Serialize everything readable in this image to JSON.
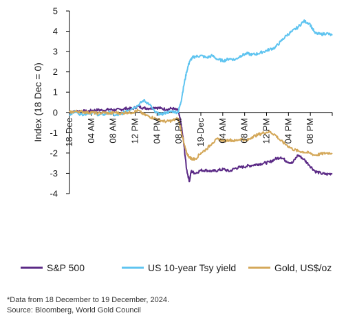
{
  "colors": {
    "sp500": "#5b2a86",
    "tsy": "#5fc4f0",
    "gold": "#d4a85a",
    "axis": "#000000"
  },
  "chart_data": {
    "type": "line",
    "ylabel": "Index (18 Dec = 0)",
    "ylim": [
      -4,
      5
    ],
    "y_ticks": [
      "5",
      "4",
      "3",
      "2",
      "1",
      "0",
      "-1",
      "-2",
      "-3",
      "-4"
    ],
    "x_tick_labels": [
      "18-Dec",
      "04 AM",
      "08 AM",
      "12 PM",
      "04 PM",
      "08 PM",
      "19-Dec",
      "04 AM",
      "08 AM",
      "12 PM",
      "04 PM",
      "08 PM"
    ],
    "x_range_hours": [
      0,
      46
    ],
    "grid": false,
    "legend_position": "bottom",
    "series": [
      {
        "name": "S&P 500",
        "color_key": "sp500",
        "points": [
          [
            0,
            0
          ],
          [
            1,
            0.05
          ],
          [
            2,
            0.08
          ],
          [
            3,
            0.05
          ],
          [
            4,
            0.1
          ],
          [
            5,
            0.12
          ],
          [
            6,
            0.1
          ],
          [
            7,
            0.15
          ],
          [
            8,
            0.12
          ],
          [
            9,
            0.15
          ],
          [
            10,
            0.2
          ],
          [
            11,
            0.18
          ],
          [
            12,
            0.3
          ],
          [
            13,
            0.22
          ],
          [
            14,
            0.2
          ],
          [
            15,
            0.25
          ],
          [
            16,
            0.2
          ],
          [
            17,
            0.15
          ],
          [
            18,
            0.2
          ],
          [
            19,
            0.1
          ],
          [
            19.5,
            -0.5
          ],
          [
            20,
            -1.5
          ],
          [
            20.5,
            -2.8
          ],
          [
            21,
            -3.4
          ],
          [
            21.3,
            -2.9
          ],
          [
            22,
            -3.0
          ],
          [
            23,
            -2.85
          ],
          [
            24,
            -2.85
          ],
          [
            25,
            -2.9
          ],
          [
            26,
            -2.85
          ],
          [
            27,
            -2.8
          ],
          [
            28,
            -2.9
          ],
          [
            29,
            -2.75
          ],
          [
            30,
            -2.7
          ],
          [
            31,
            -2.65
          ],
          [
            32,
            -2.6
          ],
          [
            33,
            -2.55
          ],
          [
            34,
            -2.5
          ],
          [
            35,
            -2.45
          ],
          [
            36,
            -2.3
          ],
          [
            37,
            -2.2
          ],
          [
            38,
            -2.4
          ],
          [
            39,
            -2.5
          ],
          [
            40,
            -2.1
          ],
          [
            41,
            -2.3
          ],
          [
            42,
            -2.6
          ],
          [
            43,
            -2.9
          ],
          [
            44,
            -3.0
          ],
          [
            45,
            -3.05
          ],
          [
            46,
            -3.0
          ]
        ]
      },
      {
        "name": "US 10-year Tsy yield",
        "color_key": "tsy",
        "points": [
          [
            0,
            -0.1
          ],
          [
            1,
            0.05
          ],
          [
            2,
            -0.1
          ],
          [
            3,
            -0.05
          ],
          [
            4,
            0.0
          ],
          [
            5,
            -0.1
          ],
          [
            6,
            -0.1
          ],
          [
            7,
            0.0
          ],
          [
            8,
            -0.15
          ],
          [
            9,
            -0.1
          ],
          [
            10,
            0.1
          ],
          [
            11,
            0.2
          ],
          [
            12,
            0.35
          ],
          [
            13,
            0.6
          ],
          [
            14,
            0.4
          ],
          [
            15,
            0.0
          ],
          [
            16,
            -0.1
          ],
          [
            17,
            0.0
          ],
          [
            18,
            0.05
          ],
          [
            19,
            0.0
          ],
          [
            19.5,
            0.5
          ],
          [
            20,
            1.3
          ],
          [
            20.5,
            2.0
          ],
          [
            21,
            2.5
          ],
          [
            21.5,
            2.7
          ],
          [
            22,
            2.75
          ],
          [
            23,
            2.8
          ],
          [
            24,
            2.7
          ],
          [
            25,
            2.8
          ],
          [
            26,
            2.6
          ],
          [
            27,
            2.55
          ],
          [
            28,
            2.65
          ],
          [
            29,
            2.6
          ],
          [
            30,
            2.8
          ],
          [
            31,
            2.9
          ],
          [
            32,
            2.85
          ],
          [
            33,
            2.9
          ],
          [
            34,
            3.0
          ],
          [
            35,
            3.1
          ],
          [
            36,
            3.2
          ],
          [
            37,
            3.5
          ],
          [
            38,
            3.8
          ],
          [
            39,
            4.0
          ],
          [
            40,
            4.2
          ],
          [
            41,
            4.5
          ],
          [
            42,
            4.4
          ],
          [
            43,
            3.9
          ],
          [
            44,
            3.85
          ],
          [
            45,
            3.9
          ],
          [
            46,
            3.8
          ]
        ]
      },
      {
        "name": "Gold, US$/oz",
        "color_key": "gold",
        "points": [
          [
            0,
            0
          ],
          [
            1,
            0.05
          ],
          [
            2,
            0.05
          ],
          [
            3,
            0.0
          ],
          [
            4,
            0.0
          ],
          [
            5,
            -0.05
          ],
          [
            6,
            0.0
          ],
          [
            7,
            -0.05
          ],
          [
            8,
            0.0
          ],
          [
            9,
            -0.05
          ],
          [
            10,
            0.0
          ],
          [
            11,
            0.0
          ],
          [
            12,
            0.1
          ],
          [
            13,
            -0.1
          ],
          [
            14,
            -0.2
          ],
          [
            15,
            -0.3
          ],
          [
            16,
            -0.4
          ],
          [
            17,
            -0.45
          ],
          [
            18,
            -0.4
          ],
          [
            19,
            -0.3
          ],
          [
            19.5,
            -0.8
          ],
          [
            20,
            -1.5
          ],
          [
            20.5,
            -2.0
          ],
          [
            21,
            -2.2
          ],
          [
            21.5,
            -2.3
          ],
          [
            22,
            -2.3
          ],
          [
            23,
            -2.0
          ],
          [
            24,
            -1.8
          ],
          [
            25,
            -1.5
          ],
          [
            26,
            -1.3
          ],
          [
            27,
            -1.4
          ],
          [
            28,
            -1.35
          ],
          [
            29,
            -1.4
          ],
          [
            30,
            -1.3
          ],
          [
            31,
            -1.4
          ],
          [
            32,
            -1.2
          ],
          [
            33,
            -1.1
          ],
          [
            34,
            -1.0
          ],
          [
            35,
            -0.95
          ],
          [
            36,
            -1.1
          ],
          [
            37,
            -1.4
          ],
          [
            38,
            -1.6
          ],
          [
            39,
            -1.8
          ],
          [
            40,
            -1.9
          ],
          [
            41,
            -1.95
          ],
          [
            42,
            -2.0
          ],
          [
            43,
            -2.1
          ],
          [
            44,
            -2.05
          ],
          [
            45,
            -2.0
          ],
          [
            46,
            -2.0
          ]
        ]
      }
    ]
  },
  "footnote": {
    "line1": "*Data from 18 December to 19 December, 2024.",
    "line2": "Source: Bloomberg, World Gold Council"
  }
}
